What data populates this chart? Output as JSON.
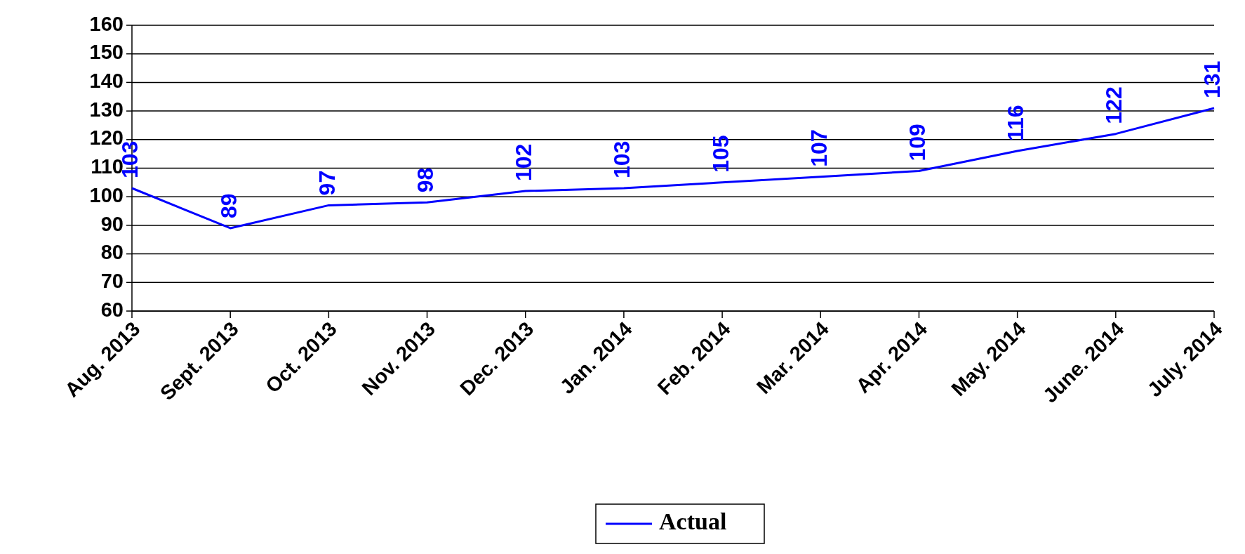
{
  "chart_data": {
    "type": "line",
    "categories": [
      "Aug. 2013",
      "Sept. 2013",
      "Oct. 2013",
      "Nov. 2013",
      "Dec. 2013",
      "Jan. 2014",
      "Feb. 2014",
      "Mar. 2014",
      "Apr. 2014",
      "May. 2014",
      "June. 2014",
      "July. 2014"
    ],
    "series": [
      {
        "name": "Actual",
        "color": "#0000ff",
        "values": [
          103,
          89,
          97,
          98,
          102,
          103,
          105,
          107,
          109,
          116,
          122,
          131
        ]
      }
    ],
    "ylim": [
      60,
      160
    ],
    "yticks": [
      60,
      70,
      80,
      90,
      100,
      110,
      120,
      130,
      140,
      150,
      160
    ],
    "grid": "y",
    "legend": "bottom",
    "data_labels": true,
    "marker": "none",
    "line_style": "solid"
  }
}
